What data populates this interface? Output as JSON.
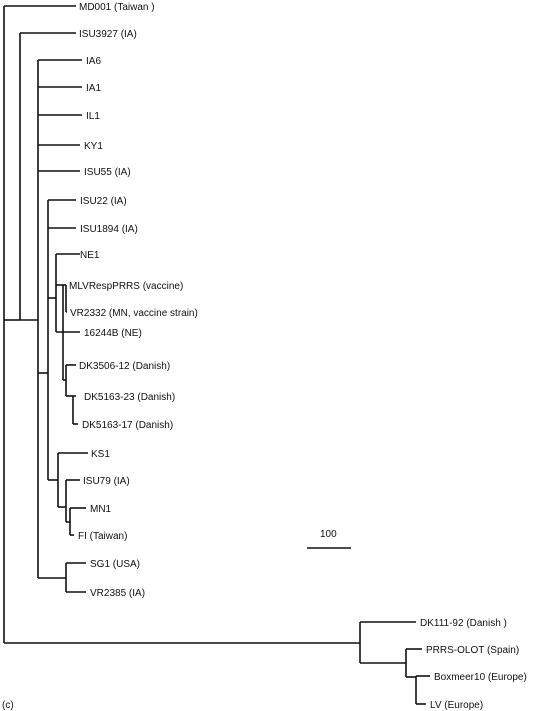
{
  "panel_label": "(c)",
  "scale_bar": {
    "label": "100"
  },
  "taxa": [
    "MD001 (Taiwan )",
    "ISU3927 (IA)",
    "IA6",
    "IA1",
    "IL1",
    "KY1",
    "ISU55 (IA)",
    "ISU22 (IA)",
    "ISU1894 (IA)",
    "NE1",
    "MLVRespPRRS (vaccine)",
    "VR2332 (MN, vaccine strain)",
    "16244B (NE)",
    "DK3506-12 (Danish)",
    "DK5163-23 (Danish)",
    "DK5163-17 (Danish)",
    "KS1",
    "ISU79 (IA)",
    "MN1",
    "FI (Taiwan)",
    "SG1 (USA)",
    "VR2385 (IA)",
    "DK111-92 (Danish )",
    "PRRS-OLOT (Spain)",
    "Boxmeer10 (Europe)",
    "LV (Europe)"
  ]
}
